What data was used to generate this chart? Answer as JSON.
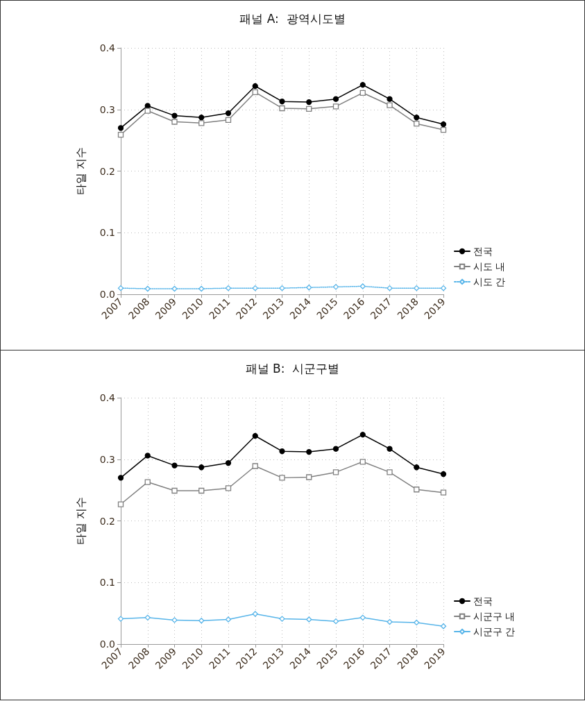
{
  "chart_data": [
    {
      "type": "line",
      "title": "패널 A:  광역시도별",
      "ylabel": "타일 지수",
      "categories": [
        "2007",
        "2008",
        "2009",
        "2010",
        "2011",
        "2012",
        "2013",
        "2014",
        "2015",
        "2016",
        "2017",
        "2018",
        "2019"
      ],
      "series": [
        {
          "name": "전국",
          "color": "#000000",
          "marker": "circle",
          "line_style": "solid",
          "values": [
            0.27,
            0.306,
            0.29,
            0.287,
            0.294,
            0.338,
            0.313,
            0.312,
            0.317,
            0.34,
            0.317,
            0.287,
            0.276
          ]
        },
        {
          "name": "시도 내",
          "color": "#808080",
          "marker": "square",
          "line_style": "solid",
          "values": [
            0.259,
            0.298,
            0.28,
            0.278,
            0.283,
            0.328,
            0.302,
            0.301,
            0.305,
            0.327,
            0.307,
            0.277,
            0.267
          ]
        },
        {
          "name": "시도 간",
          "color": "#56b4e9",
          "marker": "diamond",
          "line_style": "dotted",
          "values": [
            0.01,
            0.009,
            0.009,
            0.009,
            0.01,
            0.01,
            0.01,
            0.011,
            0.012,
            0.013,
            0.01,
            0.01,
            0.01
          ]
        }
      ],
      "ylim": [
        0,
        0.4
      ],
      "yticks": [
        {
          "value": 0,
          "label": "0.0"
        },
        0.1,
        0.2,
        0.3,
        0.4
      ],
      "grid": true,
      "legend": "bottom right"
    },
    {
      "type": "line",
      "title": "패널 B:  시군구별",
      "ylabel": "타일 지수",
      "categories": [
        "2007",
        "2008",
        "2009",
        "2010",
        "2011",
        "2012",
        "2013",
        "2014",
        "2015",
        "2016",
        "2017",
        "2018",
        "2019"
      ],
      "series": [
        {
          "name": "전국",
          "color": "#000000",
          "marker": "circle",
          "line_style": "solid",
          "values": [
            0.27,
            0.306,
            0.29,
            0.287,
            0.294,
            0.338,
            0.313,
            0.312,
            0.317,
            0.34,
            0.317,
            0.287,
            0.276
          ]
        },
        {
          "name": "시군구 내",
          "color": "#808080",
          "marker": "square",
          "line_style": "solid",
          "values": [
            0.227,
            0.263,
            0.249,
            0.249,
            0.253,
            0.289,
            0.27,
            0.271,
            0.279,
            0.296,
            0.279,
            0.251,
            0.246
          ]
        },
        {
          "name": "시군구 간",
          "color": "#56b4e9",
          "marker": "diamond",
          "line_style": "solid",
          "values": [
            0.041,
            0.043,
            0.039,
            0.038,
            0.04,
            0.049,
            0.041,
            0.04,
            0.037,
            0.043,
            0.036,
            0.035,
            0.029
          ]
        }
      ],
      "ylim": [
        0,
        0.4
      ],
      "yticks": [
        {
          "value": 0,
          "label": "0.0"
        },
        0.1,
        0.2,
        0.3,
        0.4
      ],
      "grid": true,
      "legend": "bottom right"
    }
  ]
}
